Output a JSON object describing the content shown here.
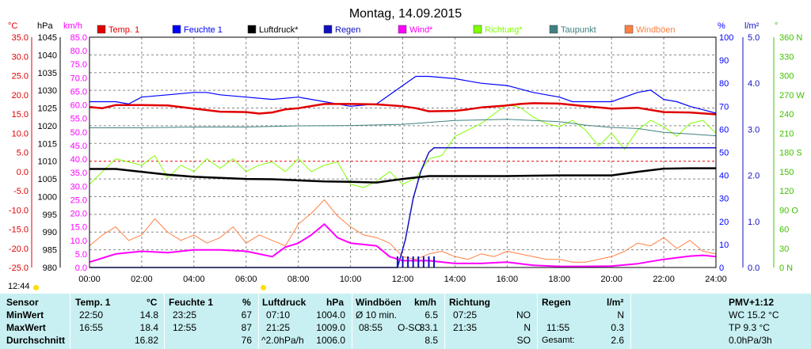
{
  "title": "Montag, 14.09.2015",
  "colors": {
    "temp": "#e00000",
    "humidity": "#0000ff",
    "pressure": "#000000",
    "rain": "#1010c0",
    "wind": "#ff00ff",
    "direction": "#80ff00",
    "dewpoint": "#408080",
    "gusts": "#ff8040",
    "panel": "#c8f0f2"
  },
  "axes": {
    "temp_unit": "°C",
    "pressure_unit": "hPa",
    "wind_unit": "km/h",
    "humidity_unit": "%",
    "rain_unit": "l/m²",
    "direction_unit": "°",
    "temp_ticks": [
      "35.0",
      "30.0",
      "25.0",
      "20.0",
      "15.0",
      "10.0",
      "5.0",
      "0.0",
      "-5.0",
      "-10.0",
      "-15.0",
      "-20.0",
      "-25.0"
    ],
    "pressure_ticks": [
      "1045",
      "1040",
      "1035",
      "1030",
      "1025",
      "1020",
      "1015",
      "1010",
      "1005",
      "1000",
      "995",
      "990",
      "985",
      "980"
    ],
    "wind_ticks": [
      "85.0",
      "80.0",
      "75.0",
      "70.0",
      "65.0",
      "60.0",
      "55.0",
      "50.0",
      "45.0",
      "40.0",
      "35.0",
      "30.0",
      "25.0",
      "20.0",
      "15.0",
      "10.0",
      "5.0",
      "0.0"
    ],
    "humidity_ticks": [
      "100",
      "90",
      "80",
      "70",
      "60",
      "50",
      "40",
      "30",
      "20",
      "10",
      "0"
    ],
    "rain_ticks": [
      "5.0",
      "4.0",
      "3.0",
      "2.0",
      "1.0",
      "0.0"
    ],
    "direction_ticks": [
      "360 N",
      "330",
      "300",
      "270 W",
      "240",
      "210",
      "180 S",
      "150",
      "120",
      "90 O",
      "60",
      "30",
      "0 N"
    ],
    "x_ticks": [
      "00:00",
      "02:00",
      "04:00",
      "06:00",
      "08:00",
      "10:00",
      "12:00",
      "14:00",
      "16:00",
      "18:00",
      "20:00",
      "22:00",
      "24:00"
    ],
    "clock": "12:44"
  },
  "legend": [
    {
      "label": "Temp. 1",
      "color": "#e00000"
    },
    {
      "label": "Feuchte 1",
      "color": "#0000ff"
    },
    {
      "label": "Luftdruck*",
      "color": "#000000"
    },
    {
      "label": "Regen",
      "color": "#1010c0"
    },
    {
      "label": "Wind*",
      "color": "#ff00ff"
    },
    {
      "label": "Richtung*",
      "color": "#80ff00"
    },
    {
      "label": "Taupunkt",
      "color": "#408080"
    },
    {
      "label": "Windböen",
      "color": "#ff8040"
    }
  ],
  "chart_data": {
    "type": "line",
    "title": "Montag, 14.09.2015",
    "x_unit": "hour",
    "xlim": [
      0,
      24
    ],
    "series": [
      {
        "name": "Temp. 1",
        "axis": "°C",
        "ylim": [
          -25,
          35
        ],
        "x": [
          0,
          0.5,
          1,
          2,
          3,
          4,
          5,
          6,
          6.5,
          7,
          7.5,
          8,
          9,
          10,
          11,
          12,
          12.5,
          13,
          14,
          14.5,
          15,
          16,
          16.5,
          17,
          18,
          19,
          20,
          21,
          22,
          23,
          24
        ],
        "y": [
          16.8,
          16.5,
          17.3,
          17.3,
          17.2,
          16.4,
          15.6,
          15.5,
          15.1,
          15.4,
          16.2,
          16.5,
          17.6,
          17.6,
          17.5,
          17.0,
          16.5,
          15.7,
          15.8,
          16.2,
          16.7,
          17.2,
          17.6,
          17.8,
          17.7,
          17.0,
          16.4,
          16.6,
          15.5,
          15.4,
          14.9
        ]
      },
      {
        "name": "Feuchte 1",
        "axis": "%",
        "ylim": [
          0,
          100
        ],
        "x": [
          0,
          1,
          1.5,
          2,
          3,
          4,
          4.5,
          5,
          6,
          7,
          8,
          9,
          10,
          11,
          11.5,
          12,
          12.5,
          13,
          14,
          14.5,
          15,
          16,
          17,
          17.5,
          18,
          18.5,
          19,
          20,
          21,
          21.5,
          22,
          22.5,
          23,
          24
        ],
        "y": [
          72,
          72,
          71,
          74,
          75,
          76,
          76,
          75,
          74,
          73,
          74,
          72,
          70,
          71,
          75,
          79,
          83,
          83,
          82,
          81,
          80,
          79,
          76,
          75,
          74,
          72,
          72,
          72,
          76,
          77,
          73,
          72,
          70,
          67
        ]
      },
      {
        "name": "Luftdruck*",
        "axis": "hPa",
        "ylim": [
          980,
          1045
        ],
        "x": [
          0,
          1,
          2,
          3,
          4,
          5,
          6,
          7,
          8,
          9,
          10,
          11,
          12,
          13,
          14,
          15,
          16,
          17,
          18,
          19,
          20,
          21,
          22,
          23,
          24
        ],
        "y": [
          1007.8,
          1007.8,
          1007.0,
          1006.2,
          1005.6,
          1005.3,
          1005.0,
          1004.9,
          1004.6,
          1004.3,
          1004.2,
          1004.0,
          1005.0,
          1005.8,
          1005.8,
          1005.8,
          1005.8,
          1005.9,
          1006.0,
          1006.0,
          1006.0,
          1007.0,
          1007.9,
          1008.0,
          1008.0
        ]
      },
      {
        "name": "Regen",
        "axis": "l/m²",
        "ylim": [
          0,
          5
        ],
        "x": [
          0,
          11.8,
          12.1,
          12.4,
          12.7,
          13.0,
          13.2,
          14,
          16,
          18,
          20,
          22,
          24
        ],
        "y": [
          0,
          0,
          0.6,
          1.5,
          2.1,
          2.5,
          2.6,
          2.6,
          2.6,
          2.6,
          2.6,
          2.6,
          2.6
        ]
      },
      {
        "name": "Wind*",
        "axis": "km/h",
        "ylim": [
          0,
          85
        ],
        "x": [
          0,
          1,
          2,
          3,
          4,
          5,
          6,
          7,
          7.5,
          8,
          8.5,
          9,
          9.5,
          10,
          11,
          11.5,
          12,
          13,
          14,
          15,
          16,
          17,
          18,
          19,
          20,
          21,
          22,
          23,
          23.5,
          24
        ],
        "y": [
          2,
          5,
          6,
          5.5,
          6.5,
          6.5,
          6,
          4,
          7.5,
          9,
          12,
          16,
          11,
          9,
          8,
          4,
          2.5,
          2.5,
          1.5,
          1.5,
          2,
          0.8,
          0.4,
          0.4,
          0.5,
          1.4,
          3,
          4.2,
          4.5,
          4
        ]
      },
      {
        "name": "Richtung*",
        "axis": "°",
        "ylim": [
          0,
          360
        ],
        "x": [
          0,
          0.5,
          1,
          1.5,
          2,
          2.5,
          3,
          3.5,
          4,
          4.5,
          5,
          5.5,
          6,
          6.5,
          7,
          7.5,
          8,
          8.5,
          9,
          9.5,
          10,
          10.5,
          11,
          11.5,
          12,
          12.5,
          13,
          13.5,
          14,
          14.5,
          15,
          15.5,
          16,
          16.5,
          17,
          17.5,
          18,
          18.5,
          19,
          19.5,
          20,
          20.5,
          21,
          21.5,
          22,
          22.5,
          23,
          23.5,
          24
        ],
        "y": [
          130,
          150,
          170,
          165,
          160,
          175,
          140,
          160,
          150,
          170,
          155,
          170,
          150,
          160,
          165,
          150,
          170,
          150,
          160,
          165,
          130,
          125,
          135,
          150,
          130,
          140,
          170,
          175,
          205,
          215,
          225,
          240,
          255,
          250,
          235,
          225,
          220,
          230,
          215,
          190,
          210,
          185,
          215,
          230,
          220,
          205,
          225,
          230,
          210
        ]
      },
      {
        "name": "Taupunkt",
        "axis": "°C",
        "ylim": [
          -25,
          35
        ],
        "x": [
          0,
          2,
          4,
          6,
          8,
          10,
          12,
          14,
          16,
          18,
          19,
          20,
          21,
          22,
          23,
          24
        ],
        "y": [
          11.4,
          11.4,
          11.6,
          11.6,
          11.9,
          12.0,
          12.3,
          13.3,
          13.6,
          13.0,
          12.1,
          11.5,
          11.2,
          10.2,
          9.8,
          9.3
        ]
      },
      {
        "name": "Windböen",
        "axis": "km/h",
        "ylim": [
          0,
          85
        ],
        "x": [
          0,
          0.5,
          1,
          1.5,
          2,
          2.5,
          3,
          3.5,
          4,
          4.5,
          5,
          5.5,
          6,
          6.5,
          7,
          7.5,
          8,
          8.5,
          9,
          9.5,
          10,
          10.5,
          11,
          11.5,
          12,
          12.5,
          13,
          13.5,
          14,
          14.5,
          15,
          15.5,
          16,
          16.5,
          17,
          17.5,
          18,
          18.5,
          19,
          19.5,
          20,
          20.5,
          21,
          21.5,
          22,
          22.5,
          23,
          23.5,
          24
        ],
        "y": [
          8,
          12,
          15,
          10,
          12,
          18,
          13,
          10,
          12,
          9,
          11,
          15,
          9,
          12,
          10,
          8,
          16,
          20,
          25,
          19,
          15,
          12,
          11,
          9,
          4,
          3,
          5,
          6,
          4,
          3,
          5,
          4,
          6,
          5,
          4,
          3,
          3,
          2,
          2,
          3,
          4,
          6,
          9,
          8,
          11,
          7,
          10,
          6,
          5
        ]
      }
    ]
  },
  "table": {
    "headers": [
      {
        "label": "Sensor",
        "unit": ""
      },
      {
        "label": "Temp. 1",
        "unit": "°C"
      },
      {
        "label": "Feuchte 1",
        "unit": "%"
      },
      {
        "label": "Luftdruck",
        "unit": "hPa"
      },
      {
        "label": "Windböen",
        "unit": "km/h"
      },
      {
        "label": "Richtung",
        "unit": ""
      },
      {
        "label": "Regen",
        "unit": "l/m²"
      },
      {
        "label": "PMV+1:12",
        "unit": ""
      }
    ],
    "rows": [
      {
        "label": "MinWert",
        "temp": [
          "22:50",
          "14.8"
        ],
        "hum": [
          "23:25",
          "67"
        ],
        "press": [
          "07:10",
          "1004.0"
        ],
        "wind": [
          "Ø 10 min.",
          "",
          "6.5"
        ],
        "dir": [
          "07:25",
          "NO"
        ],
        "rain": [
          "",
          "N"
        ],
        "pmv": "WC 15.2 °C"
      },
      {
        "label": "MaxWert",
        "temp": [
          "16:55",
          "18.4"
        ],
        "hum": [
          "12:55",
          "87"
        ],
        "press": [
          "21:25",
          "1009.0"
        ],
        "wind": [
          "08:55",
          "O-SO",
          "33.1"
        ],
        "dir": [
          "21:35",
          "N"
        ],
        "rain": [
          "11:55",
          "0.3"
        ],
        "pmv": "TP 9.3 °C"
      },
      {
        "label": "Durchschnitt",
        "temp": [
          "",
          "16.82"
        ],
        "hum": [
          "",
          "76"
        ],
        "press": [
          "^2.0hPa/h",
          "1006.0"
        ],
        "wind": [
          "",
          "",
          "8.5"
        ],
        "dir": [
          "",
          "SO"
        ],
        "rain": [
          "Gesamt:",
          "2.6"
        ],
        "pmv": "0.0hPa/3h"
      }
    ]
  }
}
